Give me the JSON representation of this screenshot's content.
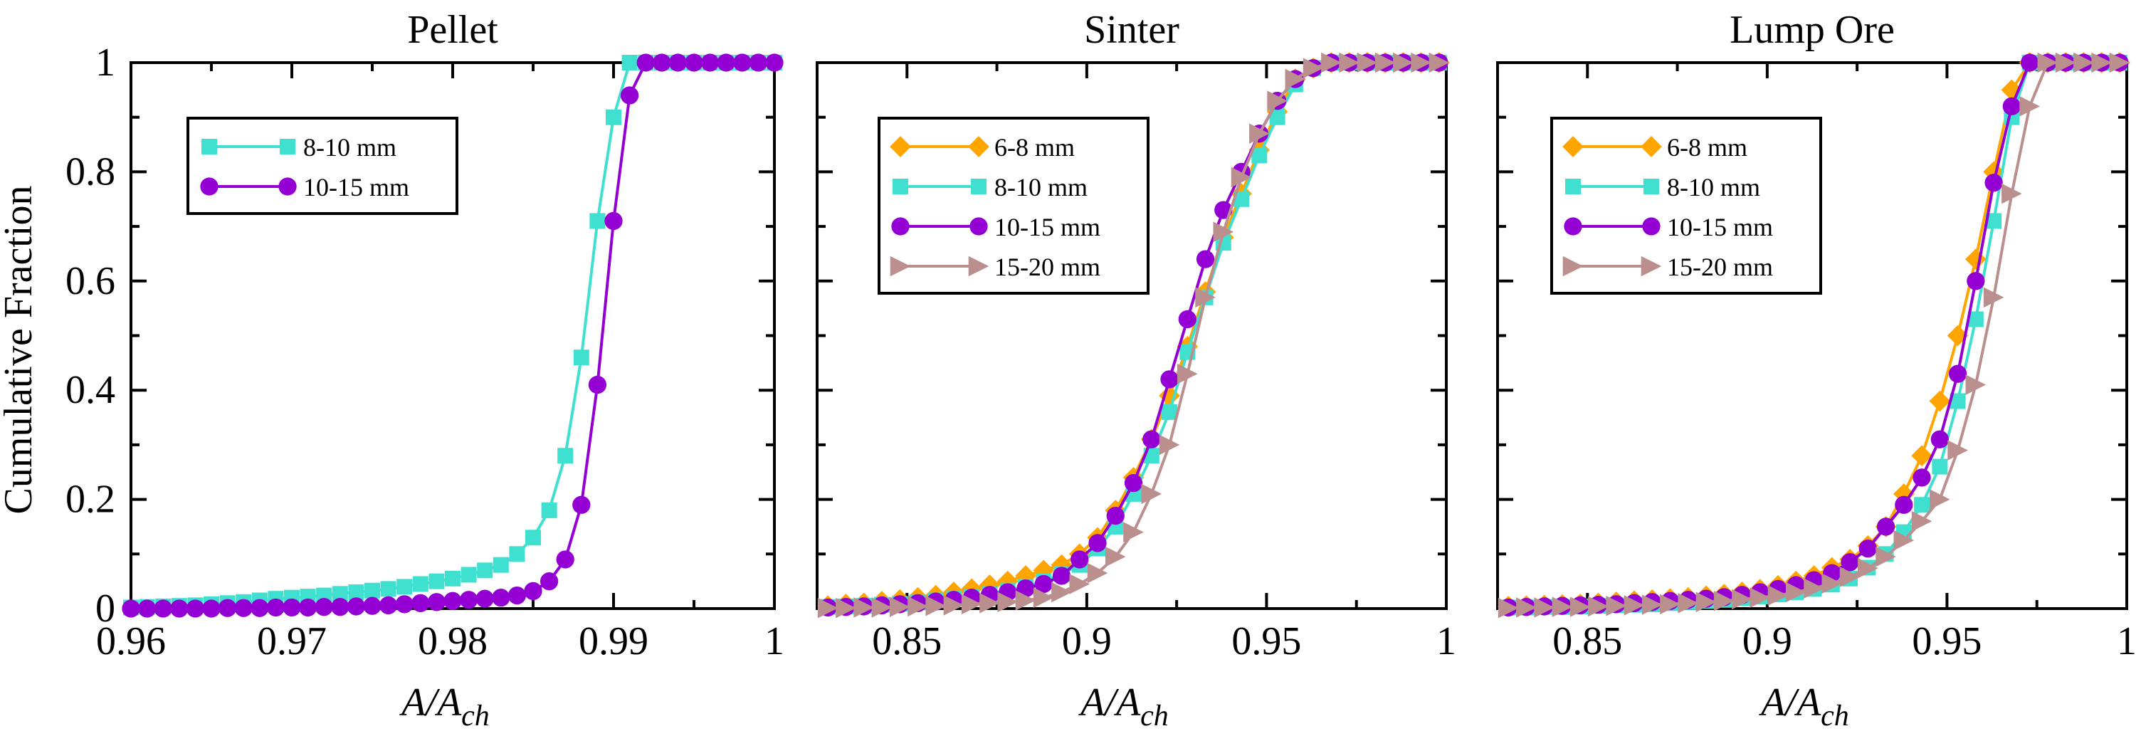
{
  "chart_data": [
    {
      "type": "line",
      "title": "Pellet",
      "xlabel": "A/A_ch",
      "ylabel": "Cumulative Fraction",
      "xlim": [
        0.96,
        1.0
      ],
      "ylim": [
        0,
        1
      ],
      "x_ticks": [
        "0.96",
        "0.97",
        "0.98",
        "0.99",
        "1"
      ],
      "y_ticks": [
        "0",
        "0.2",
        "0.4",
        "0.6",
        "0.8",
        "1"
      ],
      "legend_position": "top-left",
      "series": [
        {
          "name": "8-10 mm",
          "color": "#40e0d0",
          "marker": "square",
          "x": [
            0.96,
            0.961,
            0.962,
            0.963,
            0.964,
            0.965,
            0.966,
            0.967,
            0.968,
            0.969,
            0.97,
            0.971,
            0.972,
            0.973,
            0.974,
            0.975,
            0.976,
            0.977,
            0.978,
            0.979,
            0.98,
            0.981,
            0.982,
            0.983,
            0.984,
            0.985,
            0.986,
            0.987,
            0.988,
            0.989,
            0.99,
            0.991,
            0.992,
            0.993,
            0.994,
            0.995,
            0.996,
            0.997,
            0.998,
            0.999,
            1.0
          ],
          "y": [
            0.002,
            0.003,
            0.004,
            0.005,
            0.006,
            0.008,
            0.01,
            0.012,
            0.015,
            0.018,
            0.02,
            0.022,
            0.024,
            0.027,
            0.03,
            0.033,
            0.036,
            0.04,
            0.045,
            0.05,
            0.055,
            0.062,
            0.07,
            0.08,
            0.1,
            0.13,
            0.18,
            0.28,
            0.46,
            0.71,
            0.9,
            1.0,
            1.0,
            1.0,
            1.0,
            1.0,
            1.0,
            1.0,
            1.0,
            1.0,
            1.0
          ]
        },
        {
          "name": "10-15 mm",
          "color": "#9400d3",
          "marker": "circle",
          "x": [
            0.96,
            0.961,
            0.962,
            0.963,
            0.964,
            0.965,
            0.966,
            0.967,
            0.968,
            0.969,
            0.97,
            0.971,
            0.972,
            0.973,
            0.974,
            0.975,
            0.976,
            0.977,
            0.978,
            0.979,
            0.98,
            0.981,
            0.982,
            0.983,
            0.984,
            0.985,
            0.986,
            0.987,
            0.988,
            0.989,
            0.99,
            0.991,
            0.992,
            0.993,
            0.994,
            0.995,
            0.996,
            0.997,
            0.998,
            0.999,
            1.0
          ],
          "y": [
            0.0,
            0.0,
            0.0,
            0.0,
            0.0,
            0.0,
            0.001,
            0.001,
            0.001,
            0.002,
            0.002,
            0.002,
            0.003,
            0.003,
            0.004,
            0.005,
            0.006,
            0.008,
            0.01,
            0.012,
            0.014,
            0.016,
            0.018,
            0.02,
            0.024,
            0.032,
            0.05,
            0.09,
            0.19,
            0.41,
            0.71,
            0.94,
            1.0,
            1.0,
            1.0,
            1.0,
            1.0,
            1.0,
            1.0,
            1.0,
            1.0
          ]
        }
      ]
    },
    {
      "type": "line",
      "title": "Sinter",
      "xlabel": "A/A_ch",
      "xlim": [
        0.825,
        1.0
      ],
      "ylim": [
        0,
        1
      ],
      "x_ticks": [
        "0.85",
        "0.9",
        "0.95",
        "1"
      ],
      "legend_position": "top-left",
      "series": [
        {
          "name": "6-8 mm",
          "color": "#ffa500",
          "marker": "diamond",
          "x": [
            0.828,
            0.833,
            0.838,
            0.843,
            0.848,
            0.853,
            0.858,
            0.863,
            0.868,
            0.873,
            0.878,
            0.883,
            0.888,
            0.893,
            0.898,
            0.903,
            0.908,
            0.913,
            0.918,
            0.923,
            0.928,
            0.933,
            0.938,
            0.943,
            0.948,
            0.953,
            0.958,
            0.963,
            0.968,
            0.973,
            0.978,
            0.983,
            0.988,
            0.993,
            0.998
          ],
          "y": [
            0.005,
            0.008,
            0.01,
            0.013,
            0.016,
            0.02,
            0.024,
            0.03,
            0.036,
            0.043,
            0.05,
            0.06,
            0.07,
            0.08,
            0.1,
            0.13,
            0.18,
            0.24,
            0.31,
            0.39,
            0.48,
            0.58,
            0.68,
            0.76,
            0.84,
            0.91,
            0.97,
            0.99,
            1.0,
            1.0,
            1.0,
            1.0,
            1.0,
            1.0,
            1.0
          ]
        },
        {
          "name": "8-10 mm",
          "color": "#40e0d0",
          "marker": "square",
          "x": [
            0.828,
            0.833,
            0.838,
            0.843,
            0.848,
            0.853,
            0.858,
            0.863,
            0.868,
            0.873,
            0.878,
            0.883,
            0.888,
            0.893,
            0.898,
            0.903,
            0.908,
            0.913,
            0.918,
            0.923,
            0.928,
            0.933,
            0.938,
            0.943,
            0.948,
            0.953,
            0.958,
            0.963,
            0.968,
            0.973,
            0.978,
            0.983,
            0.988,
            0.993,
            0.998
          ],
          "y": [
            0.003,
            0.004,
            0.005,
            0.007,
            0.009,
            0.012,
            0.015,
            0.018,
            0.022,
            0.027,
            0.033,
            0.04,
            0.05,
            0.063,
            0.08,
            0.11,
            0.15,
            0.21,
            0.28,
            0.36,
            0.47,
            0.57,
            0.67,
            0.75,
            0.83,
            0.9,
            0.96,
            0.99,
            1.0,
            1.0,
            1.0,
            1.0,
            1.0,
            1.0,
            1.0
          ]
        },
        {
          "name": "10-15 mm",
          "color": "#9400d3",
          "marker": "circle",
          "x": [
            0.828,
            0.833,
            0.838,
            0.843,
            0.848,
            0.853,
            0.858,
            0.863,
            0.868,
            0.873,
            0.878,
            0.883,
            0.888,
            0.893,
            0.898,
            0.903,
            0.908,
            0.913,
            0.918,
            0.923,
            0.928,
            0.933,
            0.938,
            0.943,
            0.948,
            0.953,
            0.958,
            0.963,
            0.968,
            0.973,
            0.978,
            0.983,
            0.988,
            0.993,
            0.998
          ],
          "y": [
            0.002,
            0.003,
            0.004,
            0.006,
            0.008,
            0.01,
            0.013,
            0.016,
            0.02,
            0.025,
            0.03,
            0.037,
            0.045,
            0.06,
            0.09,
            0.12,
            0.17,
            0.23,
            0.31,
            0.42,
            0.53,
            0.64,
            0.73,
            0.8,
            0.87,
            0.93,
            0.97,
            0.99,
            1.0,
            1.0,
            1.0,
            1.0,
            1.0,
            1.0,
            1.0
          ]
        },
        {
          "name": "15-20 mm",
          "color": "#bc8f8f",
          "marker": "triangle-right",
          "x": [
            0.828,
            0.833,
            0.838,
            0.843,
            0.848,
            0.853,
            0.858,
            0.863,
            0.868,
            0.873,
            0.878,
            0.883,
            0.888,
            0.893,
            0.898,
            0.903,
            0.908,
            0.913,
            0.918,
            0.923,
            0.928,
            0.933,
            0.938,
            0.943,
            0.948,
            0.953,
            0.958,
            0.963,
            0.968,
            0.973,
            0.978,
            0.983,
            0.988,
            0.993,
            0.998
          ],
          "y": [
            0.001,
            0.001,
            0.002,
            0.002,
            0.003,
            0.004,
            0.005,
            0.006,
            0.008,
            0.01,
            0.012,
            0.015,
            0.02,
            0.03,
            0.045,
            0.065,
            0.095,
            0.14,
            0.21,
            0.3,
            0.43,
            0.57,
            0.69,
            0.79,
            0.87,
            0.93,
            0.97,
            0.99,
            1.0,
            1.0,
            1.0,
            1.0,
            1.0,
            1.0,
            1.0
          ]
        }
      ]
    },
    {
      "type": "line",
      "title": "Lump Ore",
      "xlabel": "A/A_ch",
      "xlim": [
        0.825,
        1.0
      ],
      "ylim": [
        0,
        1
      ],
      "x_ticks": [
        "0.85",
        "0.9",
        "0.95",
        "1"
      ],
      "legend_position": "top-left",
      "series": [
        {
          "name": "6-8 mm",
          "color": "#ffa500",
          "marker": "diamond",
          "x": [
            0.828,
            0.833,
            0.838,
            0.843,
            0.848,
            0.853,
            0.858,
            0.863,
            0.868,
            0.873,
            0.878,
            0.883,
            0.888,
            0.893,
            0.898,
            0.903,
            0.908,
            0.913,
            0.918,
            0.923,
            0.928,
            0.933,
            0.938,
            0.943,
            0.948,
            0.953,
            0.958,
            0.963,
            0.968,
            0.973,
            0.978,
            0.983,
            0.988,
            0.993,
            0.998
          ],
          "y": [
            0.004,
            0.005,
            0.006,
            0.007,
            0.008,
            0.01,
            0.012,
            0.014,
            0.016,
            0.018,
            0.02,
            0.023,
            0.026,
            0.03,
            0.035,
            0.042,
            0.05,
            0.06,
            0.075,
            0.09,
            0.115,
            0.15,
            0.21,
            0.28,
            0.38,
            0.5,
            0.64,
            0.8,
            0.95,
            1.0,
            1.0,
            1.0,
            1.0,
            1.0,
            1.0
          ]
        },
        {
          "name": "8-10 mm",
          "color": "#40e0d0",
          "marker": "square",
          "x": [
            0.828,
            0.833,
            0.838,
            0.843,
            0.848,
            0.853,
            0.858,
            0.863,
            0.868,
            0.873,
            0.878,
            0.883,
            0.888,
            0.893,
            0.898,
            0.903,
            0.908,
            0.913,
            0.918,
            0.923,
            0.928,
            0.933,
            0.938,
            0.943,
            0.948,
            0.953,
            0.958,
            0.963,
            0.968,
            0.973,
            0.978,
            0.983,
            0.988,
            0.993,
            0.998
          ],
          "y": [
            0.002,
            0.002,
            0.003,
            0.003,
            0.004,
            0.005,
            0.006,
            0.007,
            0.008,
            0.01,
            0.012,
            0.014,
            0.016,
            0.019,
            0.022,
            0.026,
            0.03,
            0.036,
            0.044,
            0.055,
            0.075,
            0.1,
            0.14,
            0.19,
            0.26,
            0.38,
            0.53,
            0.71,
            0.9,
            1.0,
            1.0,
            1.0,
            1.0,
            1.0,
            1.0
          ]
        },
        {
          "name": "10-15 mm",
          "color": "#9400d3",
          "marker": "circle",
          "x": [
            0.828,
            0.833,
            0.838,
            0.843,
            0.848,
            0.853,
            0.858,
            0.863,
            0.868,
            0.873,
            0.878,
            0.883,
            0.888,
            0.893,
            0.898,
            0.903,
            0.908,
            0.913,
            0.918,
            0.923,
            0.928,
            0.933,
            0.938,
            0.943,
            0.948,
            0.953,
            0.958,
            0.963,
            0.968,
            0.973,
            0.978,
            0.983,
            0.988,
            0.993,
            0.998
          ],
          "y": [
            0.002,
            0.003,
            0.004,
            0.005,
            0.006,
            0.007,
            0.008,
            0.01,
            0.012,
            0.014,
            0.016,
            0.018,
            0.021,
            0.025,
            0.03,
            0.036,
            0.043,
            0.052,
            0.065,
            0.085,
            0.11,
            0.15,
            0.19,
            0.24,
            0.31,
            0.43,
            0.6,
            0.78,
            0.92,
            1.0,
            1.0,
            1.0,
            1.0,
            1.0,
            1.0
          ]
        },
        {
          "name": "15-20 mm",
          "color": "#bc8f8f",
          "marker": "triangle-right",
          "x": [
            0.828,
            0.833,
            0.838,
            0.843,
            0.848,
            0.853,
            0.858,
            0.863,
            0.868,
            0.873,
            0.878,
            0.883,
            0.888,
            0.893,
            0.898,
            0.903,
            0.908,
            0.913,
            0.918,
            0.923,
            0.928,
            0.933,
            0.938,
            0.943,
            0.948,
            0.953,
            0.958,
            0.963,
            0.968,
            0.973,
            0.978,
            0.983,
            0.988,
            0.993,
            0.998
          ],
          "y": [
            0.001,
            0.002,
            0.002,
            0.003,
            0.003,
            0.004,
            0.005,
            0.006,
            0.007,
            0.008,
            0.01,
            0.012,
            0.014,
            0.017,
            0.02,
            0.024,
            0.03,
            0.037,
            0.046,
            0.058,
            0.074,
            0.095,
            0.125,
            0.16,
            0.2,
            0.29,
            0.41,
            0.57,
            0.76,
            0.92,
            1.0,
            1.0,
            1.0,
            1.0,
            1.0
          ]
        }
      ]
    }
  ]
}
